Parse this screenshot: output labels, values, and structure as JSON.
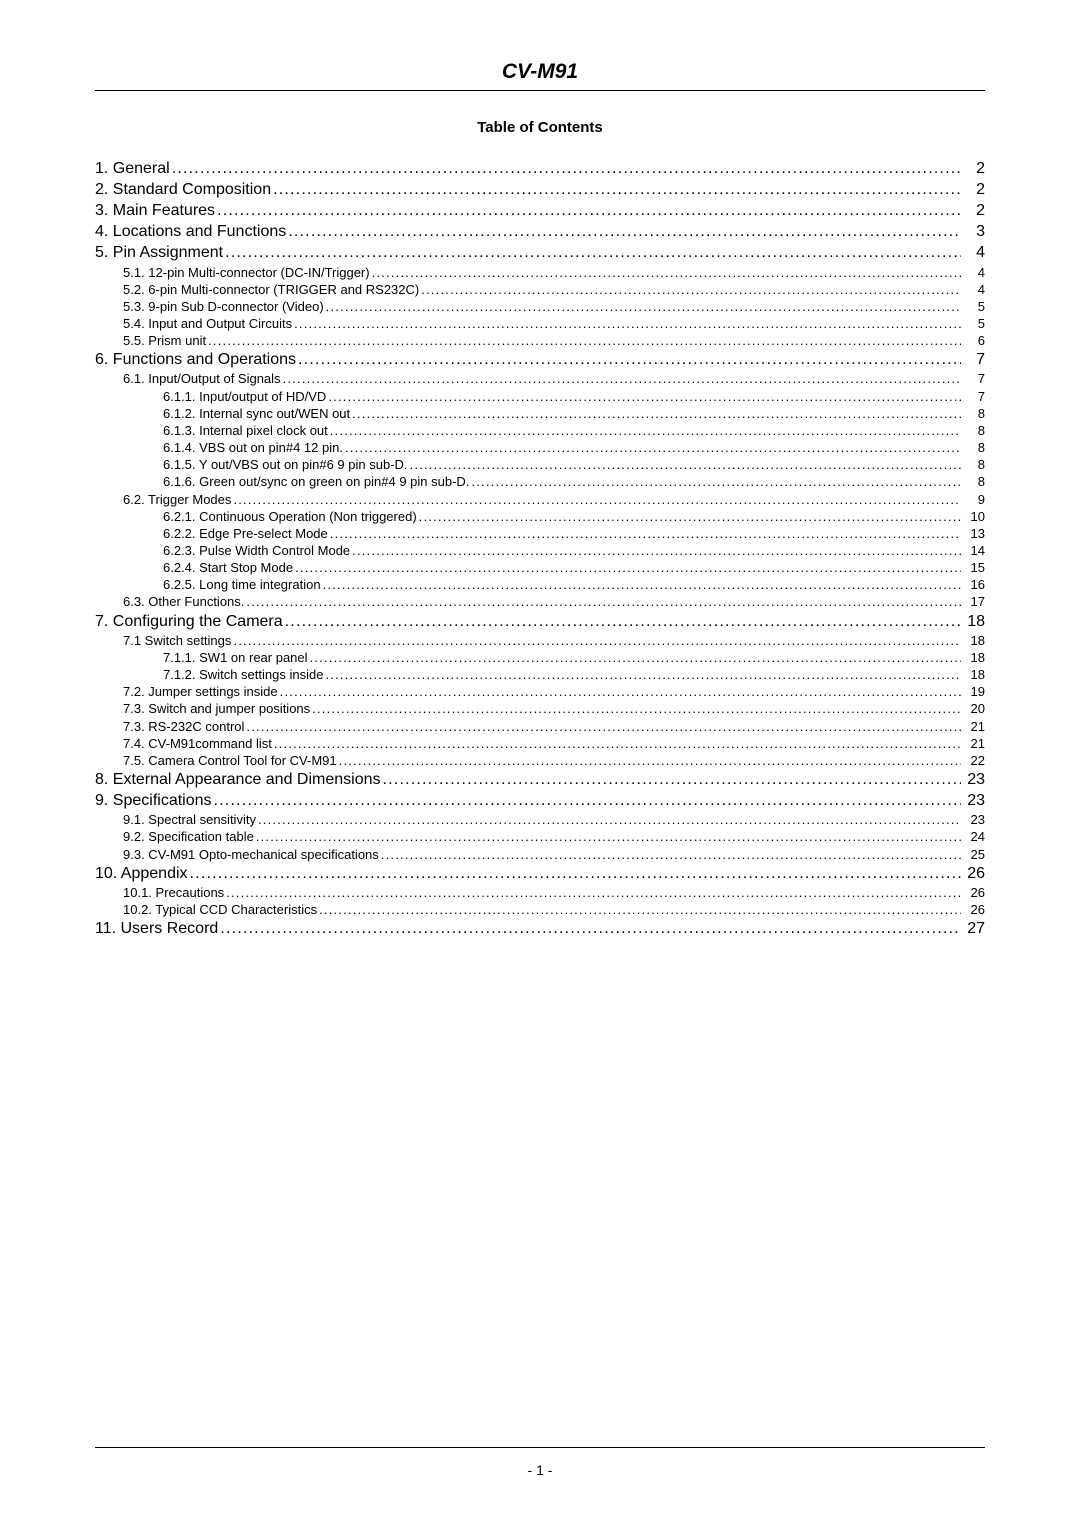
{
  "doc_title": "CV-M91",
  "toc_heading": "Table of Contents",
  "footer_page": "- 1 -",
  "entries": [
    {
      "level": 1,
      "label": "1. General",
      "page": "2"
    },
    {
      "level": 1,
      "label": "2. Standard Composition",
      "page": "2"
    },
    {
      "level": 1,
      "label": "3. Main Features",
      "page": "2"
    },
    {
      "level": 1,
      "label": "4. Locations and Functions",
      "page": "3"
    },
    {
      "level": 1,
      "label": "5. Pin Assignment",
      "page": "4"
    },
    {
      "level": 2,
      "label": "5.1. 12-pin Multi-connector (DC-IN/Trigger)",
      "page": "4"
    },
    {
      "level": 2,
      "label": "5.2. 6-pin Multi-connector (TRIGGER and RS232C)",
      "page": "4"
    },
    {
      "level": 2,
      "label": "5.3. 9-pin Sub D-connector (Video)",
      "page": "5"
    },
    {
      "level": 2,
      "label": "5.4. Input and Output Circuits",
      "page": "5"
    },
    {
      "level": 2,
      "label": "5.5. Prism unit",
      "page": "6"
    },
    {
      "level": 1,
      "label": "6. Functions and Operations",
      "page": "7"
    },
    {
      "level": 2,
      "label": "6.1. Input/Output of Signals",
      "page": "7"
    },
    {
      "level": 3,
      "label": "6.1.1. Input/output of HD/VD",
      "page": "7"
    },
    {
      "level": 3,
      "label": "6.1.2. Internal sync out/WEN out",
      "page": "8"
    },
    {
      "level": 3,
      "label": "6.1.3. Internal pixel clock out",
      "page": "8"
    },
    {
      "level": 3,
      "label": "6.1.4. VBS out on pin#4 12 pin.",
      "page": "8"
    },
    {
      "level": 3,
      "label": "6.1.5. Y out/VBS out on pin#6 9 pin sub-D.",
      "page": "8"
    },
    {
      "level": 3,
      "label": "6.1.6. Green out/sync on green on pin#4 9 pin sub-D.",
      "page": "8"
    },
    {
      "level": 2,
      "label": "6.2. Trigger Modes",
      "page": "9"
    },
    {
      "level": 3,
      "label": "6.2.1. Continuous Operation (Non triggered)",
      "page": "10"
    },
    {
      "level": 3,
      "label": "6.2.2. Edge Pre-select Mode",
      "page": "13"
    },
    {
      "level": 3,
      "label": "6.2.3. Pulse Width Control Mode",
      "page": "14"
    },
    {
      "level": 3,
      "label": "6.2.4. Start Stop Mode",
      "page": "15"
    },
    {
      "level": 3,
      "label": "6.2.5. Long time integration",
      "page": "16"
    },
    {
      "level": 2,
      "label": "6.3. Other Functions.",
      "page": "17"
    },
    {
      "level": 1,
      "label": "7. Configuring the Camera",
      "page": "18"
    },
    {
      "level": 2,
      "label": "7.1 Switch settings",
      "page": "18"
    },
    {
      "level": 3,
      "label": "7.1.1. SW1 on rear panel",
      "page": "18"
    },
    {
      "level": 3,
      "label": "7.1.2. Switch settings inside",
      "page": "18"
    },
    {
      "level": 2,
      "label": "7.2. Jumper settings inside",
      "page": "19"
    },
    {
      "level": 2,
      "label": "7.3. Switch and jumper positions",
      "page": "20"
    },
    {
      "level": 2,
      "label": "7.3. RS-232C control",
      "page": "21"
    },
    {
      "level": 2,
      "label": "7.4. CV-M91command list",
      "page": "21"
    },
    {
      "level": 2,
      "label": "7.5. Camera Control Tool for CV-M91",
      "page": "22"
    },
    {
      "level": 1,
      "label": "8. External Appearance and Dimensions",
      "page": "23"
    },
    {
      "level": 1,
      "label": "9. Specifications",
      "page": "23"
    },
    {
      "level": 2,
      "label": "9.1. Spectral sensitivity",
      "page": "23"
    },
    {
      "level": 2,
      "label": "9.2. Specification table",
      "page": "24"
    },
    {
      "level": 2,
      "label": "9.3. CV-M91 Opto-mechanical specifications",
      "page": "25"
    },
    {
      "level": 1,
      "label": "10. Appendix",
      "page": "26"
    },
    {
      "level": 2,
      "label": "10.1. Precautions",
      "page": "26"
    },
    {
      "level": 2,
      "label": "10.2. Typical CCD Characteristics",
      "page": "26"
    },
    {
      "level": 1,
      "label": "11. Users Record",
      "page": "27"
    }
  ]
}
